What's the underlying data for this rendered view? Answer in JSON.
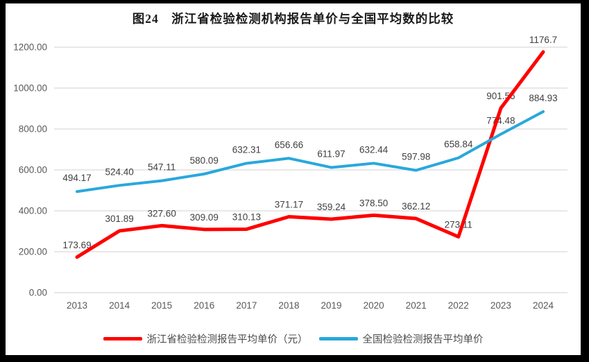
{
  "figure": {
    "title": "图24　浙江省检验检测机构报告单价与全国平均数的比较",
    "outer_background": "#000000",
    "panel_background": "#ffffff",
    "grid_color": "#d9d9d9",
    "tick_text_color": "#595959",
    "data_label_color": "#404040"
  },
  "chart_data": {
    "type": "line",
    "title": "图24　浙江省检验检测机构报告单价与全国平均数的比较",
    "categories": [
      "2013",
      "2014",
      "2015",
      "2016",
      "2017",
      "2018",
      "2019",
      "2020",
      "2021",
      "2022",
      "2023",
      "2024"
    ],
    "series": [
      {
        "name": "浙江省检验检测报告平均单价（元）",
        "color": "#ff0000",
        "values": [
          173.69,
          301.89,
          327.6,
          309.09,
          310.13,
          371.17,
          359.24,
          378.5,
          362.12,
          273.11,
          901.56,
          1176.7
        ],
        "labels": [
          "173.69",
          "301.89",
          "327.60",
          "309.09",
          "310.13",
          "371.17",
          "359.24",
          "378.50",
          "362.12",
          "273.11",
          "901.56",
          "1176.7"
        ]
      },
      {
        "name": "全国检验检测报告平均单价",
        "color": "#29a8dc",
        "values": [
          494.17,
          524.4,
          547.11,
          580.09,
          632.31,
          656.66,
          611.97,
          632.44,
          597.98,
          658.84,
          774.48,
          884.93
        ],
        "labels": [
          "494.17",
          "524.40",
          "547.11",
          "580.09",
          "632.31",
          "656.66",
          "611.97",
          "632.44",
          "597.98",
          "658.84",
          "774.48",
          "884.93"
        ]
      }
    ],
    "xlabel": "",
    "ylabel": "",
    "ylim": [
      0,
      1200
    ],
    "yticks": [
      0,
      200,
      400,
      600,
      800,
      1000,
      1200
    ],
    "ytick_labels": [
      "0.00",
      "200.00",
      "400.00",
      "600.00",
      "800.00",
      "1000.00",
      "1200.00"
    ],
    "grid": "horizontal",
    "legend_position": "bottom"
  }
}
